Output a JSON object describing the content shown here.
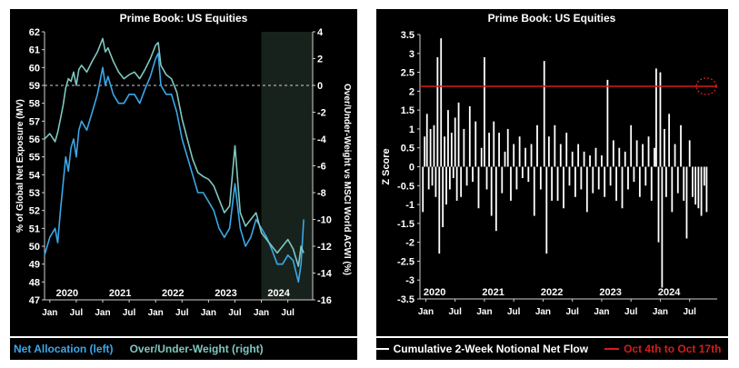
{
  "chart_data": [
    {
      "type": "line",
      "title": "Prime Book: US Equities",
      "ylabel": "% of Global Net Exposure (MV)",
      "y2label": "Over/Under-Weight vs MSCI World ACWI (%)",
      "ylim": [
        47,
        62
      ],
      "y2lim": [
        -16,
        4
      ],
      "yticks": [
        47,
        48,
        49,
        50,
        51,
        52,
        53,
        54,
        55,
        56,
        57,
        58,
        59,
        60,
        61,
        62
      ],
      "y2ticks": [
        -16,
        -14,
        -12,
        -10,
        -8,
        -6,
        -4,
        -2,
        0,
        2,
        4
      ],
      "ref_line_left": 59,
      "shaded_from": 2024.0,
      "xlim": [
        2019.9,
        2024.97
      ],
      "years": [
        "2020",
        "2021",
        "2022",
        "2023",
        "2024"
      ],
      "month_labels": [
        "Jan",
        "Jul",
        "Jan",
        "Jul",
        "Jan",
        "Jul",
        "Jan",
        "Jul",
        "Jan",
        "Jul"
      ],
      "grid": false,
      "series": [
        {
          "name": "Net Allocation (left)",
          "axis": "left",
          "color": "#3aa8e8",
          "x": [
            2019.9,
            2020.0,
            2020.1,
            2020.15,
            2020.2,
            2020.25,
            2020.3,
            2020.35,
            2020.4,
            2020.45,
            2020.5,
            2020.55,
            2020.6,
            2020.7,
            2020.8,
            2020.9,
            2021.0,
            2021.05,
            2021.1,
            2021.2,
            2021.3,
            2021.4,
            2021.5,
            2021.6,
            2021.7,
            2021.8,
            2021.9,
            2022.0,
            2022.05,
            2022.1,
            2022.2,
            2022.3,
            2022.4,
            2022.5,
            2022.6,
            2022.7,
            2022.8,
            2022.9,
            2023.0,
            2023.1,
            2023.2,
            2023.3,
            2023.4,
            2023.5,
            2023.6,
            2023.7,
            2023.8,
            2023.9,
            2024.0,
            2024.1,
            2024.2,
            2024.3,
            2024.4,
            2024.5,
            2024.6,
            2024.7,
            2024.75,
            2024.8
          ],
          "values": [
            49.5,
            50.5,
            51.0,
            50.2,
            52.0,
            53.5,
            55.0,
            54.2,
            55.5,
            56.0,
            55.0,
            56.5,
            57.0,
            56.5,
            57.5,
            58.5,
            60.0,
            59.0,
            59.5,
            58.5,
            58.0,
            58.0,
            58.5,
            58.5,
            58.0,
            58.8,
            59.5,
            60.5,
            60.8,
            59.0,
            58.5,
            58.5,
            57.5,
            56.0,
            55.0,
            54.0,
            53.0,
            53.0,
            52.5,
            52.0,
            51.0,
            50.5,
            51.0,
            53.5,
            51.0,
            50.0,
            50.5,
            51.5,
            51.0,
            50.5,
            49.8,
            49.0,
            49.0,
            49.5,
            49.2,
            48.0,
            49.0,
            51.5
          ]
        },
        {
          "name": "Over/Under-Weight (right)",
          "axis": "right",
          "color": "#7fc7c0",
          "x": [
            2019.9,
            2020.0,
            2020.1,
            2020.15,
            2020.2,
            2020.25,
            2020.3,
            2020.35,
            2020.4,
            2020.45,
            2020.5,
            2020.55,
            2020.6,
            2020.7,
            2020.8,
            2020.9,
            2021.0,
            2021.05,
            2021.1,
            2021.2,
            2021.3,
            2021.4,
            2021.5,
            2021.6,
            2021.7,
            2021.8,
            2021.9,
            2022.0,
            2022.05,
            2022.1,
            2022.2,
            2022.3,
            2022.4,
            2022.5,
            2022.6,
            2022.7,
            2022.8,
            2022.9,
            2023.0,
            2023.1,
            2023.2,
            2023.3,
            2023.4,
            2023.5,
            2023.6,
            2023.7,
            2023.8,
            2023.9,
            2024.0,
            2024.1,
            2024.2,
            2024.3,
            2024.4,
            2024.5,
            2024.6,
            2024.7,
            2024.75,
            2024.8
          ],
          "values": [
            -4.0,
            -3.6,
            -4.2,
            -3.5,
            -2.5,
            -1.5,
            -0.2,
            0.5,
            0.3,
            1.0,
            0.0,
            1.2,
            1.5,
            1.0,
            1.8,
            2.5,
            3.5,
            2.5,
            2.8,
            1.8,
            1.0,
            0.5,
            0.8,
            1.0,
            0.5,
            1.2,
            2.0,
            3.0,
            3.2,
            1.5,
            0.8,
            0.5,
            -0.5,
            -2.5,
            -4.0,
            -5.5,
            -6.5,
            -6.8,
            -7.0,
            -7.5,
            -8.5,
            -9.5,
            -9.0,
            -4.5,
            -9.5,
            -10.5,
            -10.0,
            -9.5,
            -11.0,
            -11.5,
            -12.0,
            -12.5,
            -12.0,
            -11.5,
            -12.2,
            -13.5,
            -12.0,
            -12.5
          ]
        }
      ]
    },
    {
      "type": "bar",
      "title": "Prime Book: US Equities",
      "ylabel": "Z Score",
      "ylim": [
        -3.5,
        3.5
      ],
      "yticks": [
        "3.5",
        "3",
        "2.5",
        "2",
        "1.5",
        "1",
        "0.5",
        "0",
        "-0.5",
        "-1",
        "-1.5",
        "-2",
        "-2.5",
        "-3",
        "-3.5"
      ],
      "xlim": [
        2019.9,
        2024.97
      ],
      "years": [
        "2020",
        "2021",
        "2022",
        "2023",
        "2024"
      ],
      "month_labels": [
        "Jan",
        "Jul",
        "Jan",
        "Jul",
        "Jan",
        "Jul",
        "Jan",
        "Jul",
        "Jan",
        "Jul"
      ],
      "grid": false,
      "hline": 2.13,
      "hline_color": "#d21e1e",
      "bar_color": "#ffffff",
      "series": [
        {
          "name": "Cumulative 2-Week Notional Net Flow",
          "x": [
            2019.95,
            2019.98,
            2020.02,
            2020.05,
            2020.08,
            2020.11,
            2020.14,
            2020.17,
            2020.2,
            2020.23,
            2020.26,
            2020.29,
            2020.32,
            2020.35,
            2020.38,
            2020.41,
            2020.44,
            2020.47,
            2020.5,
            2020.53,
            2020.56,
            2020.6,
            2020.65,
            2020.7,
            2020.75,
            2020.8,
            2020.85,
            2020.9,
            2020.95,
            2021.0,
            2021.04,
            2021.08,
            2021.12,
            2021.16,
            2021.2,
            2021.25,
            2021.3,
            2021.35,
            2021.4,
            2021.45,
            2021.5,
            2021.55,
            2021.6,
            2021.65,
            2021.7,
            2021.75,
            2021.8,
            2021.85,
            2021.9,
            2021.96,
            2022.02,
            2022.06,
            2022.1,
            2022.15,
            2022.2,
            2022.25,
            2022.3,
            2022.35,
            2022.4,
            2022.45,
            2022.5,
            2022.55,
            2022.6,
            2022.65,
            2022.7,
            2022.75,
            2022.8,
            2022.85,
            2022.9,
            2022.95,
            2023.0,
            2023.05,
            2023.1,
            2023.15,
            2023.2,
            2023.25,
            2023.3,
            2023.35,
            2023.4,
            2023.45,
            2023.5,
            2023.55,
            2023.6,
            2023.65,
            2023.7,
            2023.75,
            2023.8,
            2023.85,
            2023.9,
            2023.93,
            2023.97,
            2024.0,
            2024.03,
            2024.07,
            2024.1,
            2024.15,
            2024.2,
            2024.25,
            2024.3,
            2024.35,
            2024.4,
            2024.45,
            2024.5,
            2024.55,
            2024.6,
            2024.65,
            2024.7,
            2024.75,
            2024.79
          ],
          "values": [
            -1.2,
            0.8,
            1.4,
            -0.6,
            1.0,
            -0.5,
            1.1,
            -0.8,
            2.9,
            -2.3,
            3.4,
            -1.6,
            0.8,
            -1.0,
            1.5,
            -0.6,
            0.9,
            -0.3,
            1.3,
            -0.9,
            1.7,
            -0.8,
            1.0,
            -0.5,
            1.6,
            -0.4,
            1.2,
            -1.1,
            0.5,
            2.9,
            -0.6,
            0.9,
            -1.3,
            1.2,
            -1.7,
            0.9,
            -0.7,
            0.4,
            1.0,
            -0.9,
            0.6,
            -0.6,
            0.8,
            -0.3,
            0.5,
            -0.4,
            0.6,
            -1.3,
            1.1,
            -0.6,
            2.8,
            -2.3,
            0.8,
            -0.9,
            1.1,
            -0.9,
            0.6,
            -1.1,
            0.9,
            -0.5,
            0.4,
            -0.8,
            0.6,
            -0.6,
            0.4,
            -1.2,
            0.3,
            -0.7,
            0.5,
            -0.6,
            0.3,
            -0.8,
            2.3,
            -0.5,
            0.7,
            -0.9,
            0.5,
            -1.1,
            0.4,
            -0.6,
            1.1,
            -0.4,
            0.7,
            -0.8,
            0.6,
            -0.5,
            0.8,
            -0.9,
            0.5,
            2.6,
            -2.0,
            2.5,
            -3.2,
            1.0,
            -0.8,
            1.4,
            -1.2,
            0.6,
            -0.7,
            1.1,
            -0.9,
            -1.9,
            0.7,
            -0.8,
            -1.0,
            -1.1,
            -1.3,
            -0.5,
            -1.2
          ]
        }
      ]
    }
  ],
  "legend_left": [
    {
      "label": "Net Allocation (left)",
      "color": "#3aa8e8"
    },
    {
      "label": "Over/Under-Weight (right)",
      "color": "#7fc7c0"
    }
  ],
  "legend_right": [
    {
      "label": "Cumulative 2-Week Notional Net Flow",
      "color": "#ffffff"
    },
    {
      "label": "Oct 4th to Oct 17th",
      "color": "#d21e1e"
    }
  ]
}
